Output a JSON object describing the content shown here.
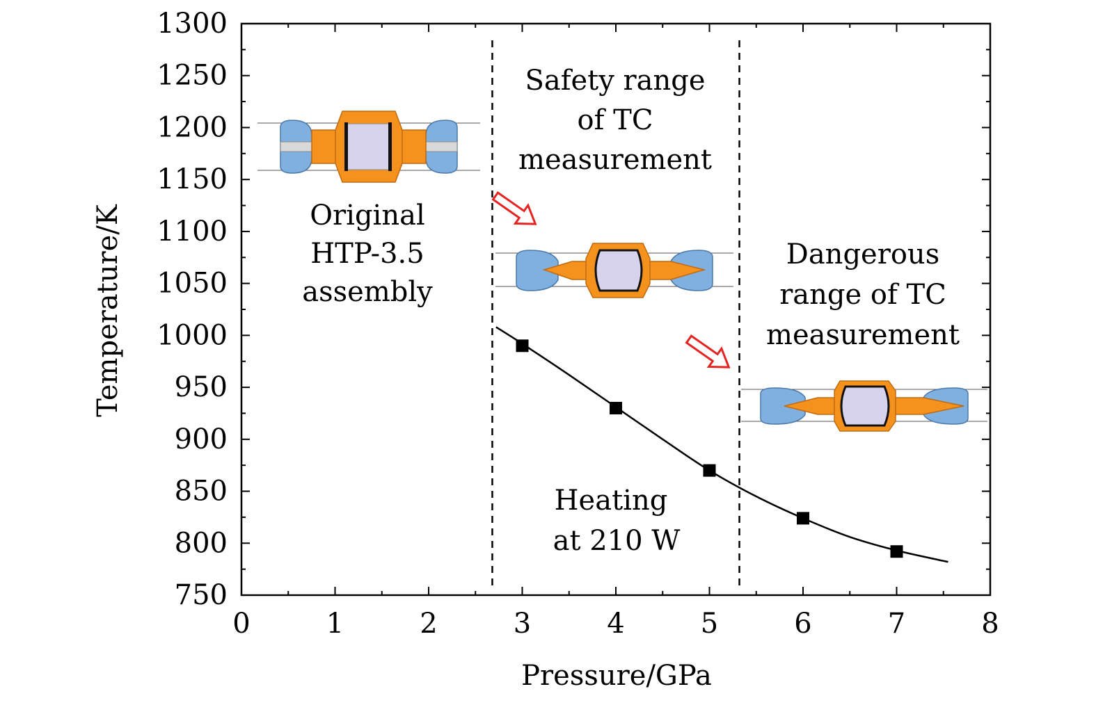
{
  "chart_data": {
    "type": "scatter",
    "xlabel": "Pressure/GPa",
    "ylabel": "Temperature/K",
    "xlim": [
      0,
      8
    ],
    "ylim": [
      750,
      1300
    ],
    "x_ticks": [
      "0",
      "1",
      "2",
      "3",
      "4",
      "5",
      "6",
      "7",
      "8"
    ],
    "y_ticks": [
      "750",
      "800",
      "850",
      "900",
      "950",
      "1000",
      "1050",
      "1100",
      "1150",
      "1200",
      "1250",
      "1300"
    ],
    "series": [
      {
        "points": [
          {
            "x": 3,
            "y": 990
          },
          {
            "x": 4,
            "y": 930
          },
          {
            "x": 5,
            "y": 870
          },
          {
            "x": 6,
            "y": 824
          },
          {
            "x": 7,
            "y": 792
          }
        ],
        "marker": "square",
        "color": "#000000"
      }
    ],
    "fit_curve": {
      "x": [
        2.72,
        3.0,
        3.5,
        4.0,
        4.5,
        5.0,
        5.5,
        6.0,
        6.5,
        7.0,
        7.55
      ],
      "y": [
        1008,
        992,
        962,
        931,
        900,
        870,
        845,
        824,
        806,
        793,
        782
      ],
      "color": "#000000"
    },
    "boundaries_x": [
      2.68,
      5.32
    ],
    "annotations": {
      "original": [
        "Original",
        "HTP-3.5",
        "assembly"
      ],
      "safety": [
        "Safety range",
        "of TC",
        "measurement"
      ],
      "dangerous": [
        "Dangerous",
        "range of TC",
        "measurement"
      ],
      "heating": [
        "Heating",
        "at 210 W"
      ]
    },
    "grid": false,
    "legend": "none",
    "colors": {
      "anvil": "#7fb0e0",
      "gasket": "#f5921e",
      "sample": "#d7d3ec",
      "arrow": "#e52421"
    }
  }
}
